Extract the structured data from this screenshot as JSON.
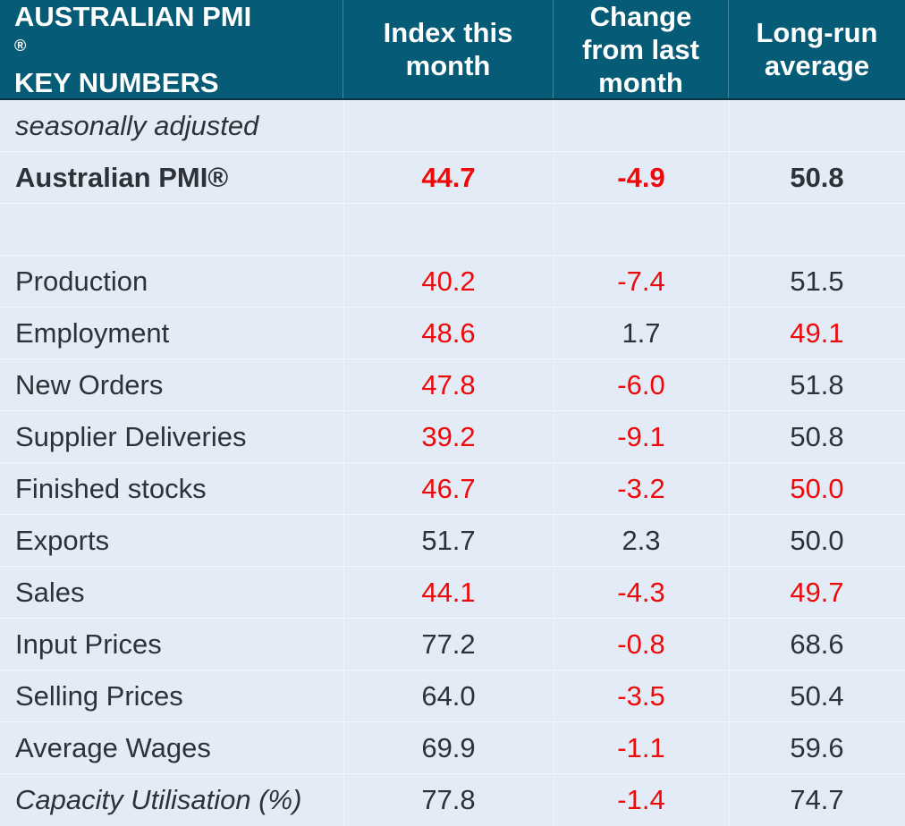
{
  "header": {
    "col0_line1": "AUSTRALIAN PMI",
    "col0_reg": "®",
    "col0_line2": "KEY NUMBERS",
    "col1_line1": "Index this",
    "col1_line2": "month",
    "col2_line1": "Change",
    "col2_line2": "from last",
    "col2_line3": "month",
    "col3_line1": "Long-run",
    "col3_line2": "average"
  },
  "subheader": "seasonally adjusted",
  "headline": {
    "label": "Australian PMI®",
    "index": "44.7",
    "change": "-4.9",
    "average": "50.8"
  },
  "rows": [
    {
      "label": "Production",
      "index": "40.2",
      "change": "-7.4",
      "average": "51.5"
    },
    {
      "label": "Employment",
      "index": "48.6",
      "change": "1.7",
      "average": "49.1"
    },
    {
      "label": "New Orders",
      "index": "47.8",
      "change": "-6.0",
      "average": "51.8"
    },
    {
      "label": "Supplier Deliveries",
      "index": "39.2",
      "change": "-9.1",
      "average": "50.8"
    },
    {
      "label": "Finished stocks",
      "index": "46.7",
      "change": "-3.2",
      "average": "50.0"
    },
    {
      "label": "Exports",
      "index": "51.7",
      "change": "2.3",
      "average": "50.0"
    },
    {
      "label": "Sales",
      "index": "44.1",
      "change": "-4.3",
      "average": "49.7"
    },
    {
      "label": "Input Prices",
      "index": "77.2",
      "change": "-0.8",
      "average": "68.6"
    },
    {
      "label": "Selling Prices",
      "index": "64.0",
      "change": "-3.5",
      "average": "50.4"
    },
    {
      "label": "Average Wages",
      "index": "69.9",
      "change": "-1.1",
      "average": "59.6"
    },
    {
      "label": "Capacity Utilisation (%)",
      "index": "77.8",
      "change": "-1.4",
      "average": "74.7"
    }
  ],
  "colors": {
    "header_bg": "#065c77",
    "body_bg": "#e3ecf6",
    "negative": "#ee0a0a",
    "text": "#2e3238"
  }
}
